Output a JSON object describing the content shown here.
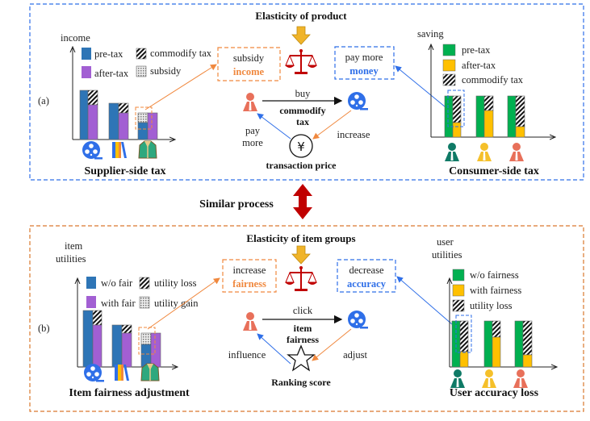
{
  "colors": {
    "blue_bar": "#2e75b6",
    "purple_bar": "#a25fd3",
    "green_bar": "#00b050",
    "yellow_bar": "#ffc000",
    "orange": "#f0883e",
    "blue": "#2f6fe8",
    "panel_a_border": "#2f6fe8",
    "panel_b_border": "#d9782d",
    "red_arrow": "#c00000"
  },
  "panel_a": {
    "label": "(a)",
    "title": "Elasticity of product",
    "left_chart": {
      "ylabel": "income",
      "legend": [
        "pre-tax",
        "after-tax",
        "commodify tax",
        "subsidy"
      ],
      "caption": "Supplier-side tax",
      "icons": [
        "film-reel-icon",
        "books-icon",
        "jacket-icon"
      ]
    },
    "subsidy_box": {
      "line1": "subsidy",
      "line2": "income"
    },
    "pay_box": {
      "line1": "pay more",
      "line2": "money"
    },
    "center": {
      "edge_top": "buy",
      "edge_label1": "commodify",
      "edge_label2": "tax",
      "left_edge1": "pay",
      "left_edge2": "more",
      "right_edge": "increase",
      "node": "transaction price",
      "node_icon": "yen-icon"
    },
    "right_chart": {
      "ylabel": "saving",
      "legend": [
        "pre-tax",
        "after-tax",
        "commodify tax"
      ],
      "caption": "Consumer-side tax"
    }
  },
  "middle": {
    "label": "Similar process"
  },
  "panel_b": {
    "label": "(b)",
    "title": "Elasticity of item groups",
    "left_chart": {
      "ylabel1": "item",
      "ylabel2": "utilities",
      "legend": [
        "w/o fair",
        "with fair",
        "utility loss",
        "utility gain"
      ],
      "caption": "Item fairness adjustment"
    },
    "fair_box": {
      "line1": "increase",
      "line2": "fairness"
    },
    "acc_box": {
      "line1": "decrease",
      "line2": "accuracy"
    },
    "center": {
      "edge_top": "click",
      "edge_label1": "item",
      "edge_label2": "fairness",
      "left_edge": "influence",
      "right_edge": "adjust",
      "node": "Ranking score",
      "node_icon": "star-icon"
    },
    "right_chart": {
      "ylabel1": "user",
      "ylabel2": "utilities",
      "legend": [
        "w/o fairness",
        "with fairness",
        "utility loss"
      ],
      "caption": "User accuracy loss"
    }
  }
}
